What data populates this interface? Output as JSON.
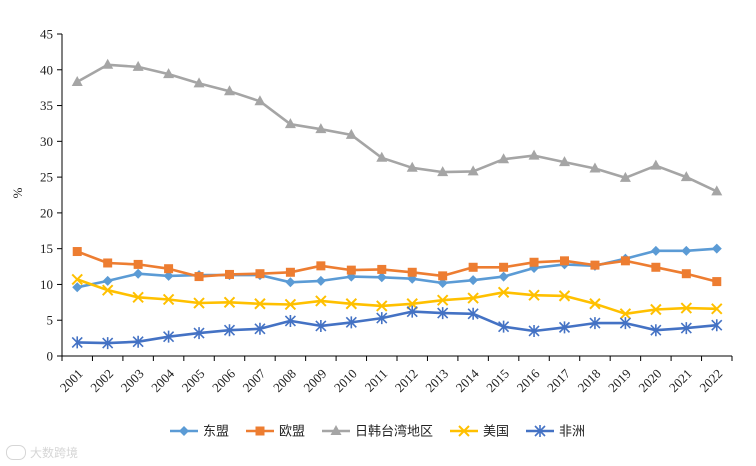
{
  "chart_data": {
    "type": "line",
    "title": "",
    "xlabel": "",
    "ylabel": "%",
    "ylim": [
      0,
      45
    ],
    "yticks": [
      0,
      5,
      10,
      15,
      20,
      25,
      30,
      35,
      40,
      45
    ],
    "categories": [
      "2001",
      "2002",
      "2003",
      "2004",
      "2005",
      "2006",
      "2007",
      "2008",
      "2009",
      "2010",
      "2011",
      "2012",
      "2013",
      "2014",
      "2015",
      "2016",
      "2017",
      "2018",
      "2019",
      "2020",
      "2021",
      "2022"
    ],
    "legend_position": "bottom",
    "series": [
      {
        "name": "东盟",
        "color": "#5b9bd5",
        "marker": "diamond",
        "values": [
          9.6,
          10.5,
          11.5,
          11.2,
          11.3,
          11.3,
          11.3,
          10.3,
          10.5,
          11.1,
          11.0,
          10.8,
          10.2,
          10.6,
          11.1,
          12.3,
          12.8,
          12.6,
          13.6,
          14.7,
          14.7,
          15.0
        ]
      },
      {
        "name": "欧盟",
        "color": "#ed7d31",
        "marker": "square",
        "values": [
          14.6,
          13.0,
          12.8,
          12.2,
          11.1,
          11.4,
          11.5,
          11.7,
          12.6,
          12.0,
          12.1,
          11.7,
          11.2,
          12.4,
          12.4,
          13.1,
          13.3,
          12.7,
          13.3,
          12.4,
          11.5,
          10.4
        ]
      },
      {
        "name": "日韩台湾地区",
        "color": "#a5a5a5",
        "marker": "triangle",
        "values": [
          38.3,
          40.7,
          40.4,
          39.4,
          38.1,
          37.0,
          35.6,
          32.4,
          31.7,
          30.9,
          27.7,
          26.3,
          25.7,
          25.8,
          27.5,
          28.0,
          27.1,
          26.2,
          24.9,
          26.6,
          25.0,
          23.0
        ]
      },
      {
        "name": "美国",
        "color": "#ffc000",
        "marker": "x",
        "values": [
          10.7,
          9.2,
          8.2,
          7.9,
          7.4,
          7.5,
          7.3,
          7.2,
          7.7,
          7.3,
          7.0,
          7.3,
          7.8,
          8.1,
          8.9,
          8.5,
          8.4,
          7.3,
          5.9,
          6.5,
          6.7,
          6.6
        ]
      },
      {
        "name": "非洲",
        "color": "#4472c4",
        "marker": "star",
        "values": [
          1.9,
          1.8,
          2.0,
          2.7,
          3.2,
          3.6,
          3.8,
          4.9,
          4.2,
          4.7,
          5.3,
          6.2,
          6.0,
          5.9,
          4.1,
          3.5,
          4.0,
          4.6,
          4.6,
          3.6,
          3.9,
          4.3
        ]
      }
    ]
  },
  "watermark": {
    "text": "大数跨境"
  }
}
